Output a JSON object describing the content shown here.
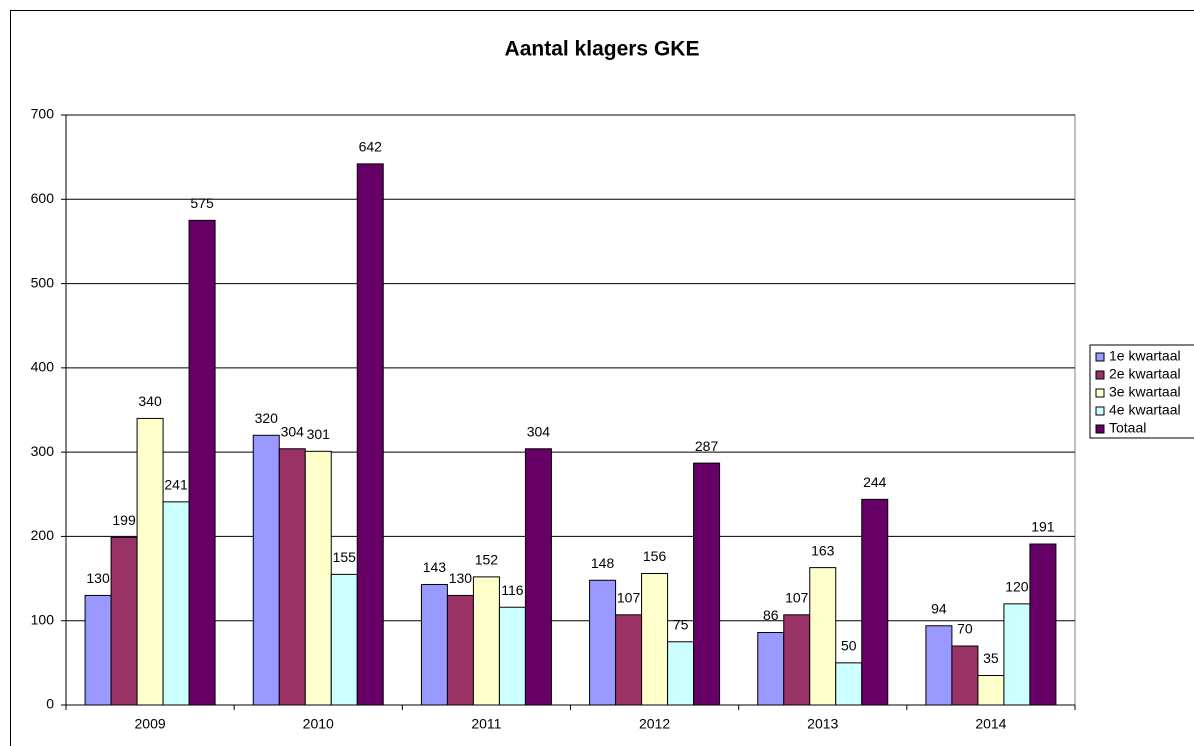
{
  "chart_data": {
    "type": "bar",
    "title": "Aantal klagers GKE",
    "categories": [
      "2009",
      "2010",
      "2011",
      "2012",
      "2013",
      "2014"
    ],
    "series": [
      {
        "name": "1e kwartaal",
        "color": "#9999ff",
        "values": [
          130,
          320,
          143,
          148,
          86,
          94
        ]
      },
      {
        "name": "2e kwartaal",
        "color": "#993366",
        "values": [
          199,
          304,
          130,
          107,
          107,
          70
        ]
      },
      {
        "name": "3e kwartaal",
        "color": "#ffffcc",
        "values": [
          340,
          301,
          152,
          156,
          163,
          35
        ]
      },
      {
        "name": "4e kwartaal",
        "color": "#ccffff",
        "values": [
          241,
          155,
          116,
          75,
          50,
          120
        ]
      },
      {
        "name": "Totaal",
        "color": "#660066",
        "values": [
          575,
          642,
          304,
          287,
          244,
          191
        ]
      }
    ],
    "ylim": [
      0,
      700
    ],
    "yticks": [
      0,
      100,
      200,
      300,
      400,
      500,
      600,
      700
    ],
    "grid": true,
    "legend": "right"
  }
}
